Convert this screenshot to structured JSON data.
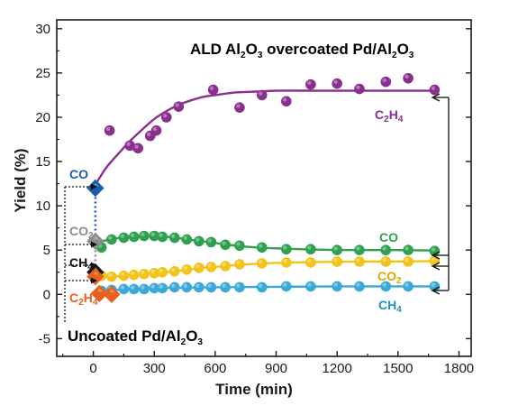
{
  "chart_data": {
    "type": "scatter",
    "xlabel": "Time (min)",
    "ylabel": "Yield (%)",
    "xlim": [
      -180,
      1860
    ],
    "ylim": [
      -7,
      31
    ],
    "xticks": [
      0,
      300,
      600,
      900,
      1200,
      1500,
      1800
    ],
    "yticks": [
      -5,
      0,
      5,
      10,
      15,
      20,
      25,
      30
    ],
    "grid": false,
    "annotations": {
      "top_title": {
        "pre": "ALD Al",
        "s1": "2",
        "mid1": "O",
        "s2": "3",
        "mid2": " overcoated Pd/Al",
        "s3": "2",
        "mid3": "O",
        "s4": "3"
      },
      "bottom_title": {
        "pre": "Uncoated Pd/Al",
        "s1": "2",
        "mid1": "O",
        "s2": "3"
      },
      "labels": {
        "co": "CO",
        "co2_base": "CO",
        "co2_sub": "2",
        "ch4_base": "CH",
        "ch4_sub": "4",
        "c2h4_c": "C",
        "c2h4_s1": "2",
        "c2h4_h": "H",
        "c2h4_s2": "4"
      }
    },
    "colors": {
      "C2H4_coated": "#8b2f8f",
      "CO_coated": "#2ea04f",
      "CO2_coated": "#f2c318",
      "CH4_coated": "#3aa9d8",
      "CO_uncoated": "#1a5db0",
      "CO2_uncoated": "#8c8c8c",
      "CH4_uncoated": "#111111",
      "C2H4_uncoated": "#e8601c"
    },
    "series": [
      {
        "name": "C2H4",
        "color": "#8b2f8f",
        "x": [
          80,
          180,
          220,
          280,
          310,
          360,
          420,
          590,
          720,
          830,
          950,
          1070,
          1200,
          1310,
          1440,
          1550,
          1680
        ],
        "y": [
          18.5,
          16.8,
          16.5,
          17.9,
          18.5,
          20.0,
          21.2,
          23.1,
          21.1,
          22.5,
          21.8,
          23.7,
          23.8,
          23.2,
          24.0,
          24.4,
          23.1
        ]
      },
      {
        "name": "CO",
        "color": "#2ea04f",
        "x": [
          40,
          90,
          150,
          200,
          250,
          300,
          340,
          400,
          460,
          520,
          580,
          650,
          720,
          830,
          950,
          1070,
          1200,
          1310,
          1440,
          1550,
          1680
        ],
        "y": [
          5.3,
          6.2,
          6.4,
          6.5,
          6.6,
          6.6,
          6.5,
          6.4,
          6.2,
          6.0,
          5.9,
          5.6,
          5.5,
          5.3,
          5.1,
          5.1,
          5.0,
          5.0,
          5.0,
          5.0,
          4.9
        ]
      },
      {
        "name": "CO2",
        "color": "#f2c318",
        "x": [
          40,
          90,
          150,
          200,
          250,
          300,
          340,
          400,
          460,
          520,
          580,
          650,
          720,
          830,
          950,
          1070,
          1200,
          1310,
          1440,
          1550,
          1680
        ],
        "y": [
          2.1,
          2.0,
          2.1,
          2.2,
          2.3,
          2.4,
          2.5,
          2.6,
          2.8,
          3.0,
          3.1,
          3.2,
          3.4,
          3.5,
          3.6,
          3.6,
          3.7,
          3.7,
          3.7,
          3.7,
          3.8
        ]
      },
      {
        "name": "CH4",
        "color": "#3aa9d8",
        "x": [
          40,
          90,
          150,
          200,
          250,
          300,
          340,
          400,
          460,
          520,
          580,
          650,
          720,
          830,
          950,
          1070,
          1200,
          1310,
          1440,
          1550,
          1680
        ],
        "y": [
          0.4,
          0.5,
          0.6,
          0.6,
          0.6,
          0.7,
          0.7,
          0.8,
          0.8,
          0.8,
          0.8,
          0.8,
          0.8,
          0.8,
          0.9,
          0.9,
          0.9,
          0.9,
          0.9,
          0.9,
          0.9
        ]
      }
    ],
    "fit_curves": [
      {
        "name": "C2H4",
        "color": "#8b2f8f",
        "x": [
          0,
          60,
          120,
          180,
          240,
          300,
          360,
          420,
          480,
          540,
          600,
          700,
          800,
          900,
          1100,
          1300,
          1500,
          1680
        ],
        "y": [
          12.0,
          14.2,
          15.8,
          17.3,
          18.6,
          19.8,
          20.7,
          21.4,
          21.9,
          22.3,
          22.5,
          22.8,
          22.9,
          23.0,
          23.0,
          23.0,
          23.0,
          23.0
        ]
      },
      {
        "name": "CO",
        "color": "#2ea04f",
        "x": [
          30,
          100,
          200,
          300,
          400,
          500,
          600,
          700,
          800,
          900,
          1100,
          1300,
          1500,
          1680
        ],
        "y": [
          5.9,
          6.3,
          6.5,
          6.6,
          6.4,
          6.1,
          5.8,
          5.5,
          5.3,
          5.2,
          5.05,
          5.0,
          5.0,
          4.95
        ]
      },
      {
        "name": "CO2",
        "color": "#f2c318",
        "x": [
          30,
          100,
          200,
          300,
          400,
          500,
          600,
          700,
          800,
          900,
          1100,
          1300,
          1500,
          1680
        ],
        "y": [
          2.0,
          2.0,
          2.2,
          2.4,
          2.6,
          2.9,
          3.1,
          3.3,
          3.45,
          3.55,
          3.65,
          3.7,
          3.72,
          3.75
        ]
      },
      {
        "name": "CH4",
        "color": "#3aa9d8",
        "x": [
          30,
          200,
          400,
          600,
          900,
          1200,
          1500,
          1680
        ],
        "y": [
          0.4,
          0.6,
          0.75,
          0.8,
          0.85,
          0.9,
          0.9,
          0.9
        ]
      }
    ],
    "uncoated_markers": [
      {
        "name": "CO",
        "color": "#1a5db0",
        "x": 10,
        "y": 12.0
      },
      {
        "name": "CO2",
        "color": "#8c8c8c",
        "x": 10,
        "y": 6.0
      },
      {
        "name": "CH4",
        "color": "#111111",
        "x": 10,
        "y": 2.5
      },
      {
        "name": "C2H4",
        "color": "#e8601c",
        "x": 10,
        "y": 2.0
      },
      {
        "name": "C2H4",
        "color": "#e8601c",
        "x": 30,
        "y": 0.1
      },
      {
        "name": "C2H4",
        "color": "#e8601c",
        "x": 90,
        "y": 0.0
      }
    ]
  }
}
